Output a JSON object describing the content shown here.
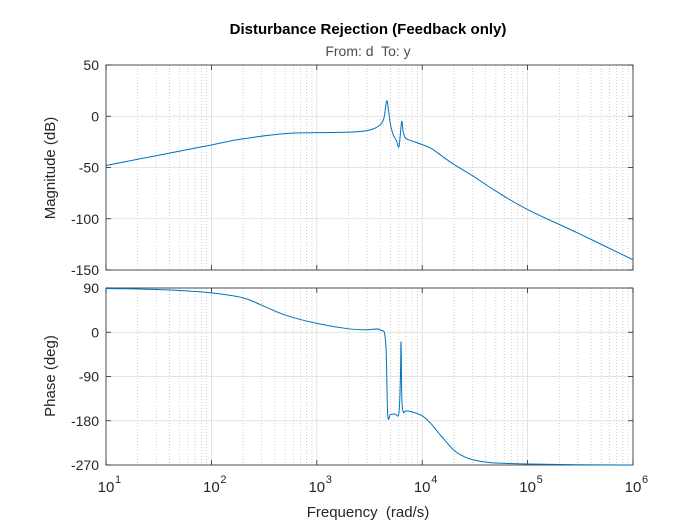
{
  "chart_data": [
    {
      "type": "line",
      "title": "Disturbance Rejection (Feedback only)",
      "subtitle": "From: d  To: y",
      "xlabel": "Frequency  (rad/s)",
      "ylabel": "Magnitude (dB)",
      "xscale": "log",
      "xlim": [
        10,
        1000000
      ],
      "ylim": [
        -150,
        50
      ],
      "yticks": [
        "50",
        "0",
        "-50",
        "-100",
        "-150"
      ],
      "grid": true,
      "line_color": "#0072bd",
      "series": [
        {
          "x": [
            10,
            20,
            50,
            100,
            200,
            500,
            1000,
            2000,
            3000,
            3800,
            4300,
            4600,
            4800,
            5000,
            5300,
            5700,
            6000,
            6200,
            6400,
            6600,
            6900,
            7500,
            9000,
            12000,
            15000,
            20000,
            30000,
            50000,
            100000,
            300000,
            1000000
          ],
          "values": [
            -48,
            -42,
            -34,
            -28,
            -22,
            -17,
            -16,
            -15.5,
            -14,
            -10,
            -3,
            15,
            5,
            -8,
            -18,
            -24,
            -30,
            -18,
            -5,
            -15,
            -21,
            -23,
            -26,
            -31,
            -38,
            -47,
            -58,
            -73,
            -91,
            -114,
            -140
          ]
        }
      ]
    },
    {
      "type": "line",
      "xlabel": "Frequency  (rad/s)",
      "ylabel": "Phase (deg)",
      "xscale": "log",
      "xlim": [
        10,
        1000000
      ],
      "ylim": [
        -270,
        90
      ],
      "yticks": [
        "90",
        "0",
        "-90",
        "-180",
        "-270"
      ],
      "xticks": [
        "10",
        "10",
        "10",
        "10",
        "10",
        "10"
      ],
      "xtick_exponents": [
        "1",
        "2",
        "3",
        "4",
        "5",
        "6"
      ],
      "grid": true,
      "line_color": "#0072bd",
      "series": [
        {
          "x": [
            10,
            20,
            50,
            100,
            200,
            300,
            500,
            1000,
            2000,
            3000,
            4000,
            4500,
            4700,
            5000,
            5500,
            6000,
            6200,
            6300,
            6400,
            6600,
            7000,
            8000,
            10000,
            12000,
            15000,
            20000,
            25000,
            30000,
            40000,
            50000,
            100000,
            300000,
            1000000
          ],
          "values": [
            89,
            88,
            85,
            80,
            70,
            55,
            35,
            18,
            7,
            5,
            5,
            -20,
            -165,
            -167,
            -166,
            -165,
            -100,
            -20,
            -130,
            -162,
            -160,
            -162,
            -170,
            -185,
            -210,
            -240,
            -253,
            -259,
            -264,
            -266,
            -268,
            -269.5,
            -270
          ]
        }
      ]
    }
  ]
}
